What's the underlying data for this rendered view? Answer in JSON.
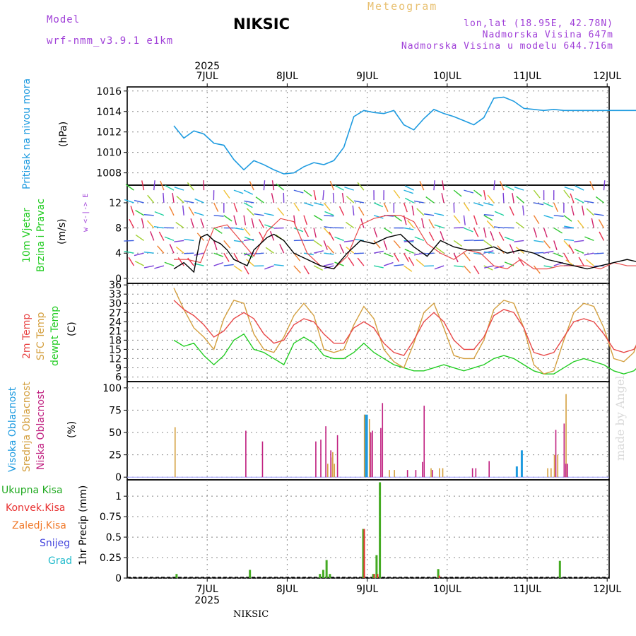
{
  "header": {
    "model_label": "Model",
    "model_name": "wrf-nmm_v3.9.1 e1km",
    "station": "NIKSIC",
    "meteogram": "Meteogram",
    "lonlat": "lon,lat (18.95E, 42.78N)",
    "altitude": "Nadmorska Visina 647m",
    "model_altitude": "Nadmorska Visina u modelu 644.716m"
  },
  "footer": {
    "station": "NIKSIC",
    "watermark": "made by Angel"
  },
  "panels": {
    "pressure": {
      "label": "Pritisak na nivou mora",
      "unit": "(hPa)"
    },
    "wind": {
      "label1": "10m Vjetar",
      "label2": "Brzina i Pravac",
      "unit": "(m/s)",
      "compass": "w  <-|->  E"
    },
    "temp": {
      "label1": "2m Temp",
      "label2": "SFC Temp",
      "label3": "dewpt Temp",
      "unit": "(C)"
    },
    "cloud": {
      "label1": "Visoka Oblacnost",
      "label2": "Srednja Oblacnost",
      "label3": "Niska Oblacnost",
      "unit": "(%)"
    },
    "precip": {
      "items": [
        "Ukupna Kisa",
        "Konvek.Kisa",
        "Zaledj.Kisa",
        "Snijeg",
        "Grad"
      ],
      "unit": "1hr Precip (mm)"
    }
  },
  "colors": {
    "pressure": "#1e9be0",
    "t2m": "#e84848",
    "tsfc": "#d4a040",
    "dewpt": "#22cc22",
    "cloud_high": "#1e9be0",
    "cloud_mid": "#d4a040",
    "cloud_low": "#c02080",
    "rain_total": "#44aa22",
    "rain_conv": "#e83030",
    "rain_frz": "#f07828",
    "snow": "#4444dd",
    "hail": "#22bbcc",
    "compass": "#a040d8"
  },
  "chart_data": [
    {
      "type": "line",
      "x_axis": {
        "year": "2025",
        "days": [
          "7JUL",
          "8JUL",
          "9JUL",
          "10JUL",
          "11JUL",
          "12JUL"
        ],
        "x_range_hours": [
          0,
          144
        ]
      },
      "ylabel": "Pritisak na nivou mora (hPa)",
      "ylim": [
        1006.8,
        1016.4
      ],
      "yticks": [
        1008,
        1010,
        1012,
        1014,
        1016
      ],
      "series": [
        {
          "name": "Pritisak na nivou mora",
          "x": [
            0,
            3,
            6,
            9,
            12,
            15,
            18,
            21,
            24,
            27,
            30,
            33,
            36,
            39,
            42,
            45,
            48,
            51,
            54,
            57,
            60,
            63,
            66,
            69,
            72,
            75,
            78,
            81,
            84,
            87,
            90,
            93,
            96,
            99,
            102,
            105,
            108,
            111,
            114,
            117,
            120,
            123,
            126,
            129,
            132,
            135,
            138,
            141,
            144
          ],
          "y": [
            1012.6,
            1011.4,
            1012.1,
            1011.8,
            1010.9,
            1010.7,
            1009.3,
            1008.3,
            1009.2,
            1008.8,
            1008.3,
            1007.9,
            1008.0,
            1008.6,
            1009.0,
            1008.8,
            1009.2,
            1010.5,
            1013.5,
            1014.1,
            1013.9,
            1013.8,
            1014.1,
            1012.7,
            1012.2,
            1013.3,
            1014.2,
            1013.8,
            1013.5,
            1013.1,
            1012.7,
            1013.4,
            1015.3,
            1015.4,
            1015.0,
            1014.3,
            1014.2,
            1014.1,
            1014.2,
            1014.1,
            1014.1,
            1014.1,
            1014.1,
            1014.1,
            1014.1,
            1014.1,
            1014.1,
            1014.1,
            1014.1
          ]
        }
      ]
    },
    {
      "type": "line",
      "ylabel": "10m Vjetar Brzina i Pravac (m/s)",
      "ylim": [
        -0.8,
        14.8
      ],
      "yticks": [
        0,
        4,
        8,
        12
      ],
      "series": [
        {
          "name": "black",
          "x": [
            0,
            3,
            6,
            8,
            10,
            12,
            14,
            16,
            18,
            22,
            24,
            28,
            30,
            33,
            36,
            40,
            44,
            48,
            52,
            56,
            60,
            64,
            68,
            72,
            76,
            80,
            84,
            88,
            92,
            96,
            100,
            104,
            108,
            112,
            116,
            120,
            124,
            128,
            132,
            136,
            140,
            144
          ],
          "y": [
            1.5,
            2.5,
            1.0,
            6.5,
            7.0,
            6.0,
            5.5,
            4.5,
            3.0,
            2.0,
            4.5,
            6.5,
            7.0,
            6.0,
            4.0,
            3.0,
            2.0,
            1.5,
            4.0,
            6.0,
            5.5,
            6.5,
            7.0,
            5.0,
            3.5,
            6.0,
            5.0,
            4.5,
            4.5,
            5.0,
            4.0,
            4.5,
            4.0,
            3.0,
            2.5,
            2.0,
            1.5,
            2.0,
            2.5,
            3.0,
            2.5,
            3.0
          ]
        },
        {
          "name": "red",
          "x": [
            0,
            4,
            8,
            12,
            16,
            20,
            24,
            28,
            32,
            36,
            40,
            44,
            48,
            52,
            56,
            60,
            64,
            68,
            72,
            76,
            80,
            84,
            88,
            92,
            96,
            100,
            104,
            108,
            112,
            116,
            120,
            124,
            128,
            132,
            136,
            140,
            144
          ],
          "y": [
            3.0,
            3.0,
            2.5,
            8.0,
            8.5,
            6.0,
            3.5,
            7.5,
            9.5,
            9.0,
            4.0,
            2.0,
            1.5,
            3.5,
            8.5,
            9.5,
            10.0,
            10.0,
            9.0,
            5.5,
            4.0,
            3.0,
            4.5,
            4.0,
            2.0,
            1.5,
            3.0,
            1.5,
            1.5,
            2.0,
            2.0,
            2.0,
            1.5,
            2.5,
            2.0,
            2.0,
            2.5
          ]
        }
      ],
      "arrow_rows": [
        2,
        4,
        6,
        8,
        10,
        12,
        14
      ]
    },
    {
      "type": "line",
      "ylabel": "Temp (C)",
      "ylim": [
        4.5,
        36.5
      ],
      "yticks": [
        6,
        9,
        12,
        15,
        18,
        21,
        24,
        27,
        30,
        33,
        36
      ],
      "series": [
        {
          "name": "2m Temp",
          "x": [
            0,
            3,
            6,
            9,
            12,
            15,
            18,
            21,
            24,
            27,
            30,
            33,
            36,
            39,
            42,
            45,
            48,
            51,
            54,
            57,
            60,
            63,
            66,
            69,
            72,
            75,
            78,
            81,
            84,
            87,
            90,
            93,
            96,
            99,
            102,
            105,
            108,
            111,
            114,
            117,
            120,
            123,
            126,
            129,
            132,
            135,
            138,
            141,
            144
          ],
          "y": [
            31,
            28,
            26,
            23,
            19,
            21,
            25,
            27,
            25,
            20,
            17,
            18,
            23,
            25,
            24,
            20,
            17,
            17,
            22,
            24,
            22,
            17,
            14,
            13,
            18,
            24,
            27,
            24,
            18,
            15,
            15,
            19,
            26,
            28,
            27,
            22,
            14,
            13,
            14,
            19,
            24,
            25,
            24,
            20,
            15,
            14,
            15,
            20,
            24
          ]
        },
        {
          "name": "SFC Temp",
          "x": [
            0,
            3,
            6,
            9,
            12,
            15,
            18,
            21,
            24,
            27,
            30,
            33,
            36,
            39,
            42,
            45,
            48,
            51,
            54,
            57,
            60,
            63,
            66,
            69,
            72,
            75,
            78,
            81,
            84,
            87,
            90,
            93,
            96,
            99,
            102,
            105,
            108,
            111,
            114,
            117,
            120,
            123,
            126,
            129,
            132,
            135,
            138,
            141,
            144
          ],
          "y": [
            35,
            28,
            22,
            19,
            15,
            25,
            31,
            30,
            20,
            15,
            14,
            19,
            26,
            30,
            26,
            15,
            14,
            15,
            23,
            29,
            25,
            15,
            11,
            9,
            17,
            27,
            30,
            22,
            13,
            12,
            12,
            18,
            28,
            31,
            30,
            22,
            10,
            7,
            8,
            18,
            27,
            30,
            29,
            22,
            12,
            11,
            14,
            24,
            30
          ]
        },
        {
          "name": "dewpt Temp",
          "x": [
            0,
            3,
            6,
            9,
            12,
            15,
            18,
            21,
            24,
            27,
            30,
            33,
            36,
            39,
            42,
            45,
            48,
            51,
            54,
            57,
            60,
            63,
            66,
            69,
            72,
            75,
            78,
            81,
            84,
            87,
            90,
            93,
            96,
            99,
            102,
            105,
            108,
            111,
            114,
            117,
            120,
            123,
            126,
            129,
            132,
            135,
            138,
            141,
            144
          ],
          "y": [
            18,
            16,
            17,
            13,
            10,
            13,
            18,
            20,
            15,
            14,
            12,
            10,
            17,
            19,
            17,
            13,
            12,
            12,
            14,
            17,
            14,
            12,
            10,
            9,
            8,
            8,
            9,
            10,
            9,
            8,
            9,
            10,
            12,
            13,
            12,
            10,
            8,
            7,
            7,
            9,
            11,
            12,
            11,
            10,
            8,
            7,
            8,
            11,
            13
          ]
        }
      ]
    },
    {
      "type": "bar",
      "ylabel": "Oblacnost (%)",
      "ylim": [
        -3,
        107
      ],
      "yticks": [
        0,
        25,
        50,
        75,
        100
      ],
      "series": [
        {
          "name": "Visoka Oblacnost",
          "x": [
            57.5,
            58,
            103,
            104.5
          ],
          "values": [
            70,
            70,
            12,
            30
          ]
        },
        {
          "name": "Srednja Oblacnost",
          "x": [
            0.2,
            46,
            47,
            47.5,
            48,
            57,
            58.5,
            64.5,
            66,
            77,
            79.5,
            80.5,
            112,
            113,
            114,
            115,
            117.5,
            143.5
          ],
          "values": [
            56,
            15,
            22,
            28,
            15,
            70,
            65,
            8,
            8,
            10,
            10,
            10,
            10,
            10,
            25,
            25,
            93,
            10
          ]
        },
        {
          "name": "Niska Oblacnost",
          "x": [
            21,
            26,
            42,
            43.5,
            45,
            46.5,
            48.5,
            58.5,
            59,
            61.5,
            62,
            69.5,
            72,
            74,
            74.5,
            77,
            89,
            90,
            94,
            114,
            116.5,
            117,
            117.5,
            142.5,
            143.5
          ],
          "values": [
            52,
            40,
            40,
            42,
            57,
            30,
            47,
            50,
            52,
            55,
            83,
            8,
            8,
            17,
            80,
            8,
            10,
            10,
            18,
            53,
            60,
            15,
            15,
            8,
            10
          ]
        }
      ]
    },
    {
      "type": "bar",
      "ylabel": "1hr Precip (mm)",
      "ylim": [
        0,
        1.2
      ],
      "yticks": [
        0,
        0.25,
        0.5,
        0.75,
        1
      ],
      "series": [
        {
          "name": "Ukupna Kisa",
          "x": [
            0.5,
            22.5,
            43.5,
            44.5,
            45.5,
            46.5,
            56.5,
            59.5,
            60.5,
            61.5,
            79,
            115.5
          ],
          "values": [
            0.05,
            0.1,
            0.05,
            0.1,
            0.22,
            0.05,
            0.6,
            0.05,
            0.28,
            1.17,
            0.11,
            0.21
          ]
        },
        {
          "name": "Konvek.Kisa",
          "x": [
            56.5,
            59.5,
            60.5,
            79
          ],
          "values": [
            0.6,
            0.05,
            0.05,
            0.03
          ]
        }
      ]
    }
  ]
}
